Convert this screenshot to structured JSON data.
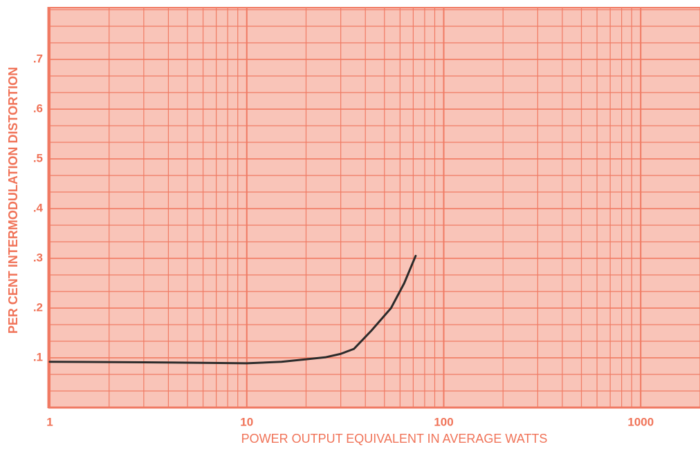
{
  "chart_data": {
    "type": "line",
    "xlabel": "POWER OUTPUT EQUIVALENT IN AVERAGE WATTS",
    "ylabel": "PER CENT INTERMODULATION DISTORTION",
    "xscale": "log",
    "xlim": [
      1,
      2000
    ],
    "xticks": [
      1,
      10,
      100,
      1000
    ],
    "ylim": [
      0,
      0.8
    ],
    "yticks": [
      {
        "value": 0.1,
        "label": ".1"
      },
      {
        "value": 0.2,
        "label": ".2"
      },
      {
        "value": 0.3,
        "label": ".3"
      },
      {
        "value": 0.4,
        "label": ".4"
      },
      {
        "value": 0.5,
        "label": ".5"
      },
      {
        "value": 0.6,
        "label": ".6"
      },
      {
        "value": 0.7,
        "label": ".7"
      }
    ],
    "grid": true,
    "y_minor_divisions": 3,
    "background": "#f9c4b8",
    "grid_color": "#f07a63",
    "series": [
      {
        "color": "#2b2b2b",
        "x": [
          1,
          3,
          10,
          15,
          20,
          25,
          30,
          35,
          43,
          54,
          63,
          72
        ],
        "values": [
          0.092,
          0.091,
          0.089,
          0.092,
          0.097,
          0.101,
          0.108,
          0.118,
          0.155,
          0.2,
          0.25,
          0.305
        ]
      }
    ]
  }
}
